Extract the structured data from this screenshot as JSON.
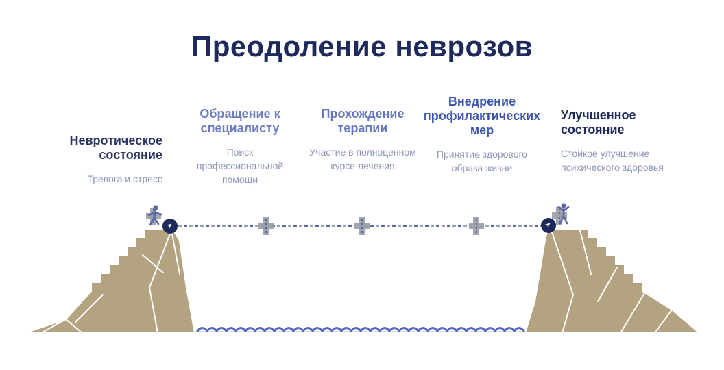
{
  "title": "Преодоление неврозов",
  "stages": [
    {
      "heading": "Невротическое состояние",
      "subtext": "Тревога и стресс",
      "heading_color": "#2c3663"
    },
    {
      "heading": "Обращение к специалисту",
      "subtext": "Поиск профессиональной помощи",
      "heading_color": "#6b7cc4"
    },
    {
      "heading": "Прохождение терапии",
      "subtext": "Участие в полноценном курсе лечения",
      "heading_color": "#6577c2"
    },
    {
      "heading": "Внедрение профилактических мер",
      "subtext": "Принятие здорового образа жизни",
      "heading_color": "#3c55ad"
    },
    {
      "heading": "Улучшенное состояние",
      "subtext": "Стойкое улучшение психического здоровья",
      "heading_color": "#1e2a5c"
    }
  ],
  "icons": {
    "start_marker": "navigation-arrow-icon",
    "end_marker": "navigation-arrow-icon",
    "milestone": "plus-icon",
    "arrow_glyph": "➤"
  },
  "colors": {
    "title": "#1e2a5c",
    "subtext": "#8d96bb",
    "mountain": "#b3a380",
    "mountain_lines": "#ffffff",
    "rope_blue": "#5a68a8",
    "rope_gray": "#97a0b5",
    "marker_gray": "#9aa0a8",
    "endpoint_circle": "#1e2a5c",
    "wave": "#5565c0",
    "figure": "#5b699e",
    "ground": "#dcdcdc"
  }
}
